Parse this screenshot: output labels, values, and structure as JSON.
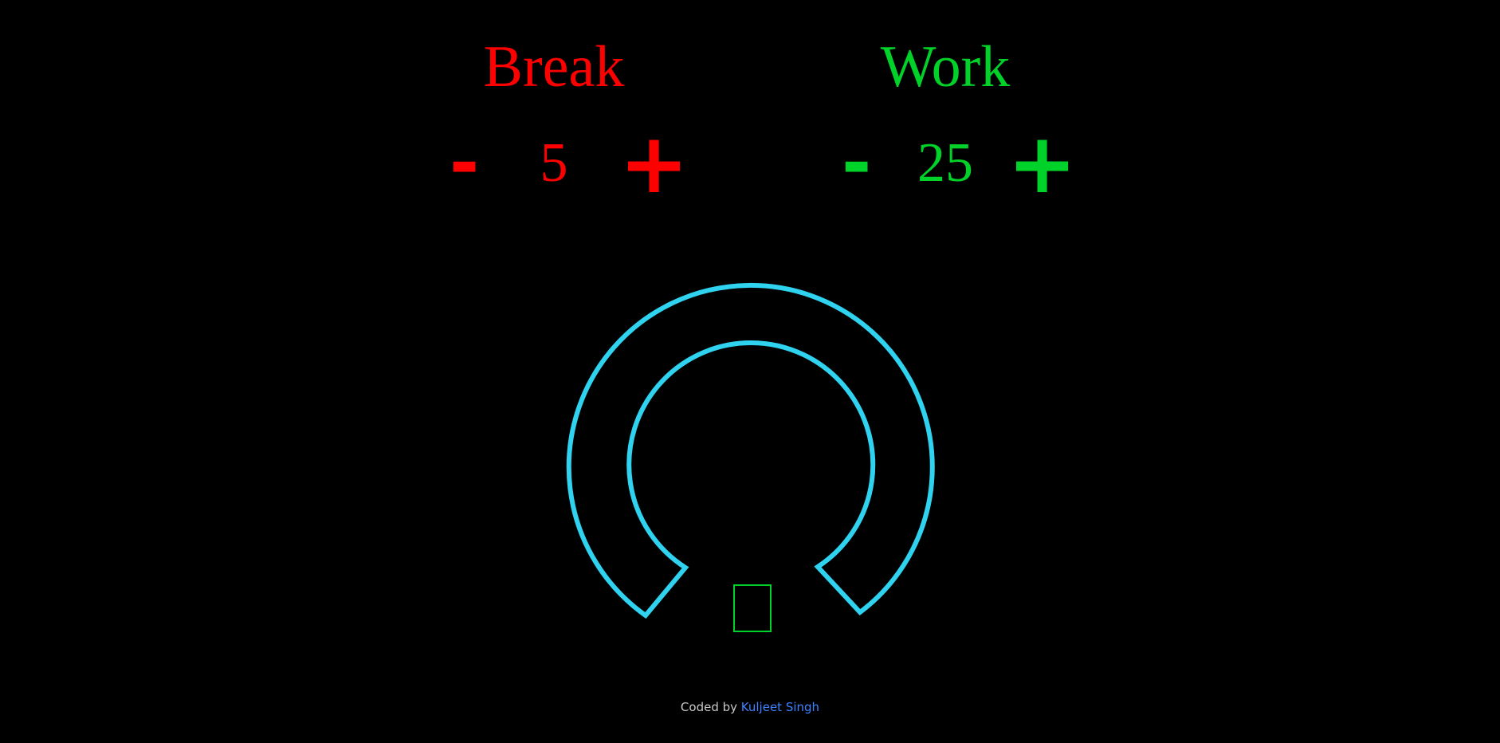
{
  "break": {
    "title": "Break",
    "minus_label": "-",
    "value": "5",
    "plus_label": "+",
    "color": "#ff0000"
  },
  "work": {
    "title": "Work",
    "minus_label": "-",
    "value": "25",
    "plus_label": "+",
    "color": "#00d22a"
  },
  "timer": {
    "ring_color": "#2fd2ef",
    "play_icon": "square-play-icon"
  },
  "footer": {
    "prefix": "Coded by",
    "author": "Kuljeet Singh"
  }
}
